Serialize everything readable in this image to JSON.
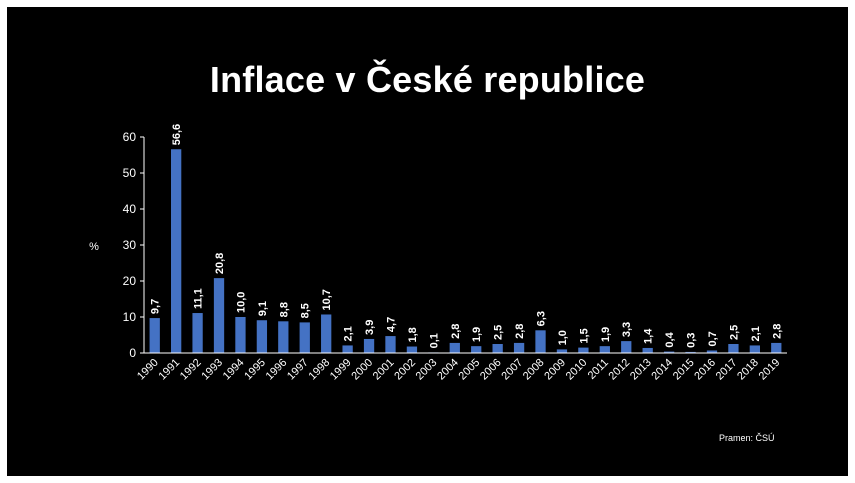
{
  "slide": {
    "title": "Inflace v České republice",
    "source": "Pramen: ČSÚ"
  },
  "chart_data": {
    "type": "bar",
    "title": "Inflace v České republice",
    "xlabel": "",
    "ylabel": "%",
    "ylim": [
      0,
      60
    ],
    "yticks": [
      0,
      10,
      20,
      30,
      40,
      50,
      60
    ],
    "grid": false,
    "legend": "none",
    "bar_color": "#4472c4",
    "categories": [
      "1990",
      "1991",
      "1992",
      "1993",
      "1994",
      "1995",
      "1996",
      "1997",
      "1998",
      "1999",
      "2000",
      "2001",
      "2002",
      "2003",
      "2004",
      "2005",
      "2006",
      "2007",
      "2008",
      "2009",
      "2010",
      "2011",
      "2012",
      "2013",
      "2014",
      "2015",
      "2016",
      "2017",
      "2018",
      "2019"
    ],
    "values": [
      9.7,
      56.6,
      11.1,
      20.8,
      10.0,
      9.1,
      8.8,
      8.5,
      10.7,
      2.1,
      3.9,
      4.7,
      1.8,
      0.1,
      2.8,
      1.9,
      2.5,
      2.8,
      6.3,
      1.0,
      1.5,
      1.9,
      3.3,
      1.4,
      0.4,
      0.3,
      0.7,
      2.5,
      2.1,
      2.8
    ],
    "labels": [
      "9,7",
      "56,6",
      "11,1",
      "20,8",
      "10,0",
      "9,1",
      "8,8",
      "8,5",
      "10,7",
      "2,1",
      "3,9",
      "4,7",
      "1,8",
      "0,1",
      "2,8",
      "1,9",
      "2,5",
      "2,8",
      "6,3",
      "1,0",
      "1,5",
      "1,9",
      "3,3",
      "1,4",
      "0,4",
      "0,3",
      "0,7",
      "2,5",
      "2,1",
      "2,8"
    ]
  }
}
